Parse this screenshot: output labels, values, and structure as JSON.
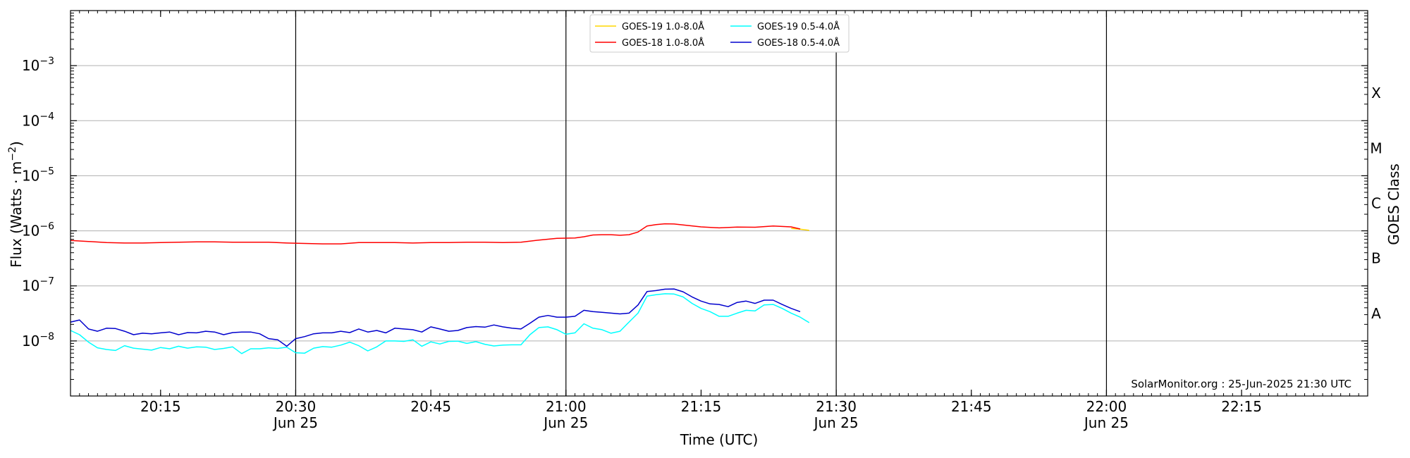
{
  "chart_data": {
    "type": "line",
    "xlabel": "Time (UTC)",
    "ylabel": "Flux (Watts · m⁻²)",
    "right_ylabel": "GOES Class",
    "yscale": "log",
    "ylim": [
      1e-09,
      0.01
    ],
    "xlim": [
      "20:05",
      "22:29"
    ],
    "grid": "horizontal",
    "legend_position": "top-center",
    "watermark": "SolarMonitor.org : 25-Jun-2025 21:30 UTC",
    "x_ticks": [
      {
        "time": "20:15",
        "label": "20:15",
        "date": ""
      },
      {
        "time": "20:30",
        "label": "20:30",
        "date": "Jun 25"
      },
      {
        "time": "20:45",
        "label": "20:45",
        "date": ""
      },
      {
        "time": "21:00",
        "label": "21:00",
        "date": "Jun 25"
      },
      {
        "time": "21:15",
        "label": "21:15",
        "date": ""
      },
      {
        "time": "21:30",
        "label": "21:30",
        "date": "Jun 25"
      },
      {
        "time": "21:45",
        "label": "21:45",
        "date": ""
      },
      {
        "time": "22:00",
        "label": "22:00",
        "date": "Jun 25"
      },
      {
        "time": "22:15",
        "label": "22:15",
        "date": ""
      }
    ],
    "vertical_lines": [
      "20:30",
      "21:00",
      "21:30",
      "22:00"
    ],
    "y_ticks": [
      {
        "value": 1e-08,
        "base": "10",
        "exp": "−8"
      },
      {
        "value": 1e-07,
        "base": "10",
        "exp": "−7"
      },
      {
        "value": 1e-06,
        "base": "10",
        "exp": "−6"
      },
      {
        "value": 1e-05,
        "base": "10",
        "exp": "−5"
      },
      {
        "value": 0.0001,
        "base": "10",
        "exp": "−4"
      },
      {
        "value": 0.001,
        "base": "10",
        "exp": "−3"
      }
    ],
    "goes_classes": [
      {
        "label": "A",
        "value": 3.16e-08
      },
      {
        "label": "B",
        "value": 3.16e-07
      },
      {
        "label": "C",
        "value": 3.16e-06
      },
      {
        "label": "M",
        "value": 3.16e-05
      },
      {
        "label": "X",
        "value": 0.000316
      }
    ],
    "series": [
      {
        "name": "GOES-19 1.0-8.0Å",
        "color": "#FFD700",
        "x": [
          "21:25",
          "21:26",
          "21:27"
        ],
        "y": [
          1.1e-06,
          1.07e-06,
          1.02e-06
        ]
      },
      {
        "name": "GOES-18 1.0-8.0Å",
        "color": "#FF0000",
        "x": [
          "20:05",
          "20:07",
          "20:09",
          "20:11",
          "20:13",
          "20:15",
          "20:17",
          "20:19",
          "20:21",
          "20:23",
          "20:25",
          "20:27",
          "20:29",
          "20:31",
          "20:33",
          "20:35",
          "20:37",
          "20:39",
          "20:41",
          "20:43",
          "20:45",
          "20:47",
          "20:49",
          "20:51",
          "20:53",
          "20:55",
          "20:57",
          "20:59",
          "21:01",
          "21:02",
          "21:03",
          "21:04",
          "21:05",
          "21:06",
          "21:07",
          "21:08",
          "21:09",
          "21:10",
          "21:11",
          "21:12",
          "21:13",
          "21:15",
          "21:17",
          "21:19",
          "21:21",
          "21:23",
          "21:25",
          "21:26"
        ],
        "y": [
          6.7e-07,
          6.4e-07,
          6.1e-07,
          6e-07,
          6e-07,
          6.1e-07,
          6.2e-07,
          6.3e-07,
          6.3e-07,
          6.2e-07,
          6.2e-07,
          6.2e-07,
          6e-07,
          5.9e-07,
          5.8e-07,
          5.8e-07,
          6.1e-07,
          6.1e-07,
          6.1e-07,
          6e-07,
          6.1e-07,
          6.1e-07,
          6.2e-07,
          6.2e-07,
          6.1e-07,
          6.2e-07,
          6.8e-07,
          7.3e-07,
          7.4e-07,
          7.8e-07,
          8.4e-07,
          8.5e-07,
          8.5e-07,
          8.3e-07,
          8.5e-07,
          9.5e-07,
          1.22e-06,
          1.3e-06,
          1.34e-06,
          1.33e-06,
          1.28e-06,
          1.18e-06,
          1.13e-06,
          1.17e-06,
          1.16e-06,
          1.22e-06,
          1.18e-06,
          1.08e-06
        ]
      },
      {
        "name": "GOES-19 0.5-4.0Å",
        "color": "#00FFFF",
        "x": [
          "20:05",
          "20:06",
          "20:07",
          "20:08",
          "20:09",
          "20:10",
          "20:11",
          "20:12",
          "20:13",
          "20:14",
          "20:15",
          "20:16",
          "20:17",
          "20:18",
          "20:19",
          "20:20",
          "20:21",
          "20:22",
          "20:23",
          "20:24",
          "20:25",
          "20:26",
          "20:27",
          "20:28",
          "20:29",
          "20:30",
          "20:31",
          "20:32",
          "20:33",
          "20:34",
          "20:35",
          "20:36",
          "20:37",
          "20:38",
          "20:39",
          "20:40",
          "20:41",
          "20:42",
          "20:43",
          "20:44",
          "20:45",
          "20:46",
          "20:47",
          "20:48",
          "20:49",
          "20:50",
          "20:51",
          "20:52",
          "20:53",
          "20:54",
          "20:55",
          "20:56",
          "20:57",
          "20:58",
          "20:59",
          "21:00",
          "21:01",
          "21:02",
          "21:03",
          "21:04",
          "21:05",
          "21:06",
          "21:07",
          "21:08",
          "21:09",
          "21:10",
          "21:11",
          "21:12",
          "21:13",
          "21:14",
          "21:15",
          "21:16",
          "21:17",
          "21:18",
          "21:19",
          "21:20",
          "21:21",
          "21:22",
          "21:23",
          "21:24",
          "21:25",
          "21:26",
          "21:27"
        ],
        "y": [
          1.55e-08,
          1.3e-08,
          9.5e-09,
          7.5e-09,
          7e-09,
          6.7e-09,
          8.2e-09,
          7.4e-09,
          7.1e-09,
          6.8e-09,
          7.6e-09,
          7.2e-09,
          8e-09,
          7.4e-09,
          7.8e-09,
          7.7e-09,
          7e-09,
          7.3e-09,
          7.8e-09,
          5.9e-09,
          7.2e-09,
          7.2e-09,
          7.5e-09,
          7.3e-09,
          7.7e-09,
          6.1e-09,
          6e-09,
          7.4e-09,
          7.9e-09,
          7.7e-09,
          8.4e-09,
          9.5e-09,
          8.2e-09,
          6.6e-09,
          7.8e-09,
          1e-08,
          1e-08,
          9.8e-09,
          1.05e-08,
          8e-09,
          9.6e-09,
          8.8e-09,
          9.8e-09,
          9.9e-09,
          9e-09,
          9.7e-09,
          8.7e-09,
          8.1e-09,
          8.4e-09,
          8.5e-09,
          8.5e-09,
          1.3e-08,
          1.75e-08,
          1.8e-08,
          1.6e-08,
          1.32e-08,
          1.4e-08,
          2.05e-08,
          1.7e-08,
          1.6e-08,
          1.38e-08,
          1.5e-08,
          2.2e-08,
          3.2e-08,
          6.5e-08,
          6.9e-08,
          7.2e-08,
          7.1e-08,
          6.3e-08,
          4.8e-08,
          3.9e-08,
          3.4e-08,
          2.8e-08,
          2.8e-08,
          3.2e-08,
          3.6e-08,
          3.5e-08,
          4.5e-08,
          4.6e-08,
          3.9e-08,
          3.2e-08,
          2.7e-08,
          2.15e-08
        ]
      },
      {
        "name": "GOES-18 0.5-4.0Å",
        "color": "#0000CD",
        "x": [
          "20:05",
          "20:06",
          "20:07",
          "20:08",
          "20:09",
          "20:10",
          "20:11",
          "20:12",
          "20:13",
          "20:14",
          "20:15",
          "20:16",
          "20:17",
          "20:18",
          "20:19",
          "20:20",
          "20:21",
          "20:22",
          "20:23",
          "20:24",
          "20:25",
          "20:26",
          "20:27",
          "20:28",
          "20:29",
          "20:30",
          "20:31",
          "20:32",
          "20:33",
          "20:34",
          "20:35",
          "20:36",
          "20:37",
          "20:38",
          "20:39",
          "20:40",
          "20:41",
          "20:42",
          "20:43",
          "20:44",
          "20:45",
          "20:46",
          "20:47",
          "20:48",
          "20:49",
          "20:50",
          "20:51",
          "20:52",
          "20:53",
          "20:54",
          "20:55",
          "20:56",
          "20:57",
          "20:58",
          "20:59",
          "21:00",
          "21:01",
          "21:02",
          "21:03",
          "21:04",
          "21:05",
          "21:06",
          "21:07",
          "21:08",
          "21:09",
          "21:10",
          "21:11",
          "21:12",
          "21:13",
          "21:14",
          "21:15",
          "21:16",
          "21:17",
          "21:18",
          "21:19",
          "21:20",
          "21:21",
          "21:22",
          "21:23",
          "21:24",
          "21:25",
          "21:26"
        ],
        "y": [
          2.2e-08,
          2.4e-08,
          1.65e-08,
          1.5e-08,
          1.7e-08,
          1.68e-08,
          1.5e-08,
          1.3e-08,
          1.38e-08,
          1.35e-08,
          1.4e-08,
          1.45e-08,
          1.3e-08,
          1.42e-08,
          1.4e-08,
          1.5e-08,
          1.45e-08,
          1.3e-08,
          1.42e-08,
          1.45e-08,
          1.45e-08,
          1.35e-08,
          1.1e-08,
          1.05e-08,
          8e-09,
          1.1e-08,
          1.2e-08,
          1.35e-08,
          1.4e-08,
          1.4e-08,
          1.5e-08,
          1.42e-08,
          1.65e-08,
          1.45e-08,
          1.55e-08,
          1.4e-08,
          1.7e-08,
          1.65e-08,
          1.6e-08,
          1.45e-08,
          1.8e-08,
          1.65e-08,
          1.5e-08,
          1.55e-08,
          1.75e-08,
          1.82e-08,
          1.78e-08,
          1.95e-08,
          1.8e-08,
          1.7e-08,
          1.65e-08,
          2.1e-08,
          2.7e-08,
          2.9e-08,
          2.7e-08,
          2.7e-08,
          2.8e-08,
          3.6e-08,
          3.4e-08,
          3.3e-08,
          3.2e-08,
          3.1e-08,
          3.2e-08,
          4.5e-08,
          7.9e-08,
          8.2e-08,
          8.7e-08,
          8.8e-08,
          7.8e-08,
          6.3e-08,
          5.3e-08,
          4.7e-08,
          4.6e-08,
          4.2e-08,
          5e-08,
          5.3e-08,
          4.8e-08,
          5.5e-08,
          5.5e-08,
          4.6e-08,
          3.9e-08,
          3.4e-08
        ]
      }
    ]
  }
}
